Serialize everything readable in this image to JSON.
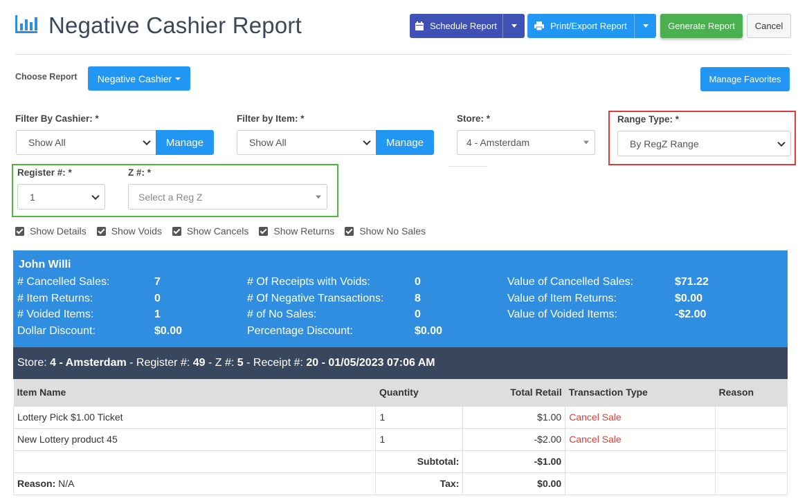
{
  "header": {
    "title": "Negative Cashier Report",
    "schedule_label": "Schedule Report",
    "print_label": "Print/Export Report",
    "generate_label": "Generate Report",
    "cancel_label": "Cancel"
  },
  "choose": {
    "label": "Choose Report",
    "report_label": "Negative Cashier",
    "manage_favorites_label": "Manage Favorites"
  },
  "filters": {
    "cashier_label": "Filter By Cashier: *",
    "cashier_value": "Show All",
    "item_label": "Filter by Item: *",
    "item_value": "Show All",
    "manage_label": "Manage",
    "store_label": "Store: *",
    "store_value": "4 - Amsterdam",
    "range_label": "Range Type: *",
    "range_value": "By RegZ Range",
    "register_label": "Register #: *",
    "register_value": "1",
    "z_label": "Z #: *",
    "z_placeholder": "Select a Reg Z"
  },
  "checkboxes": [
    "Show Details",
    "Show Voids",
    "Show Cancels",
    "Show Returns",
    "Show No Sales"
  ],
  "summary": {
    "name": "John Willi",
    "col1": [
      {
        "label": "# Cancelled Sales:",
        "value": "7"
      },
      {
        "label": "# Item Returns:",
        "value": "0"
      },
      {
        "label": "# Voided Items:",
        "value": "1"
      },
      {
        "label": "Dollar Discount:",
        "value": "$0.00"
      }
    ],
    "col2": [
      {
        "label": "# Of Receipts with Voids:",
        "value": "0"
      },
      {
        "label": "# Of Negative Transactions:",
        "value": "8"
      },
      {
        "label": "# of No Sales:",
        "value": "0"
      },
      {
        "label": "Percentage Discount:",
        "value": "$0.00"
      }
    ],
    "col3": [
      {
        "label": "Value of Cancelled Sales:",
        "value": "$71.22"
      },
      {
        "label": "Value of Item Returns:",
        "value": "$0.00"
      },
      {
        "label": "Value of Voided Items:",
        "value": "-$2.00"
      }
    ]
  },
  "store_bar": {
    "store_label": "Store:",
    "store_value": "4 - Amsterdam",
    "register_label": "Register #:",
    "register_value": "49",
    "z_label": "Z #:",
    "z_value": "5",
    "receipt_label": "Receipt #:",
    "receipt_value": "20 - 01/05/2023 07:06 AM"
  },
  "table": {
    "headers": [
      "Item Name",
      "Quantity",
      "Total Retail",
      "Transaction Type",
      "Reason"
    ],
    "rows": [
      {
        "item": "Lottery Pick $1.00 Ticket",
        "qty": "1",
        "retail": "$1.00",
        "type": "Cancel Sale",
        "reason": ""
      },
      {
        "item": "New Lottery product 45",
        "qty": "1",
        "retail": "-$2.00",
        "type": "Cancel Sale",
        "reason": ""
      }
    ],
    "subtotal_label": "Subtotal:",
    "subtotal_value": "-$1.00",
    "reason_label": "Reason:",
    "reason_value": "N/A",
    "tax_label": "Tax:",
    "tax_value": "$0.00"
  },
  "colors": {
    "primary": "#2196f3",
    "schedule": "#3f51b5",
    "generate": "#4caf50",
    "summary_bg": "#2f8ee0",
    "store_bar_bg": "#38465e",
    "range_outline": "#e53935",
    "register_outline": "#4cbb3c"
  }
}
